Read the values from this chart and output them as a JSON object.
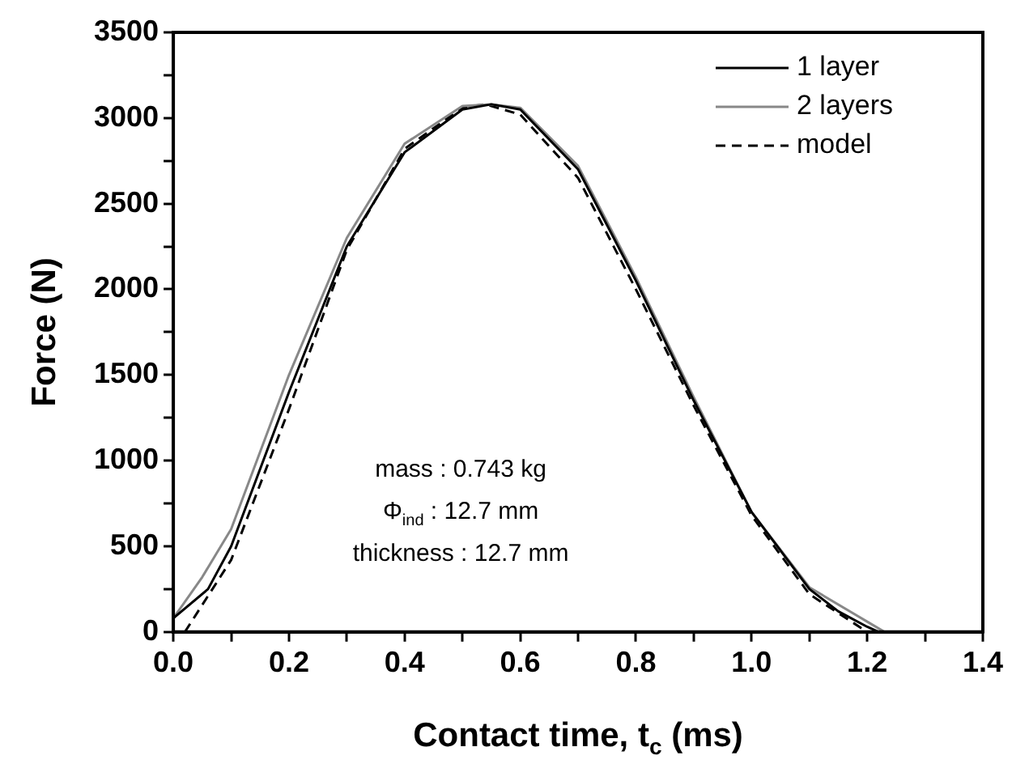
{
  "chart_data": {
    "type": "line",
    "xlabel": "Contact time, t$_{c}$ (ms)",
    "ylabel": "Force (N)",
    "xlim": [
      0,
      1.4
    ],
    "ylim": [
      0,
      3500
    ],
    "xticks": [
      {
        "value": 0,
        "label": "0.0"
      },
      {
        "value": 0.1,
        "label": null
      },
      0.2,
      {
        "value": 0.3,
        "label": null
      },
      0.4,
      {
        "value": 0.5,
        "label": null
      },
      0.6,
      {
        "value": 0.7,
        "label": null
      },
      0.8,
      {
        "value": 0.9,
        "label": null
      },
      {
        "value": 1.0,
        "label": "1.0"
      },
      {
        "value": 1.1,
        "label": null
      },
      1.2,
      {
        "value": 1.3,
        "label": null
      },
      1.4
    ],
    "yticks": [
      0,
      {
        "value": 250,
        "label": null
      },
      500,
      {
        "value": 750,
        "label": null
      },
      1000,
      {
        "value": 1250,
        "label": null
      },
      1500,
      {
        "value": 1750,
        "label": null
      },
      2000,
      {
        "value": 2250,
        "label": null
      },
      2500,
      {
        "value": 2750,
        "label": null
      },
      3000,
      {
        "value": 3250,
        "label": null
      },
      3500
    ],
    "legend": "top right",
    "grid": false,
    "marker": "none",
    "annotations": [
      "mass : 0.743 kg",
      "Φ$_{ind}$ : 12.7 mm",
      "thickness : 12.7 mm"
    ],
    "series": [
      {
        "name": "1 layer",
        "color": "#000000",
        "line_style": "solid",
        "x": [
          0,
          0.06,
          0.1,
          0.2,
          0.3,
          0.4,
          0.5,
          0.55,
          0.6,
          0.7,
          0.8,
          0.9,
          1.0,
          1.1,
          1.15,
          1.2,
          1.22
        ],
        "values": [
          80,
          250,
          500,
          1400,
          2250,
          2800,
          3050,
          3080,
          3050,
          2700,
          2050,
          1350,
          700,
          250,
          120,
          30,
          0
        ]
      },
      {
        "name": "2 layers",
        "color": "#888888",
        "line_style": "solid",
        "x": [
          0,
          0.05,
          0.1,
          0.2,
          0.3,
          0.4,
          0.5,
          0.55,
          0.6,
          0.7,
          0.8,
          0.9,
          1.0,
          1.1,
          1.2,
          1.23
        ],
        "values": [
          80,
          320,
          600,
          1500,
          2300,
          2850,
          3070,
          3080,
          3060,
          2720,
          2070,
          1370,
          700,
          260,
          60,
          0
        ]
      },
      {
        "name": "model",
        "color": "#000000",
        "line_style": "dashed",
        "x": [
          0.02,
          0.1,
          0.2,
          0.3,
          0.4,
          0.5,
          0.54,
          0.6,
          0.7,
          0.8,
          0.9,
          1.0,
          1.1,
          1.2
        ],
        "values": [
          0,
          420,
          1300,
          2230,
          2820,
          3060,
          3080,
          3020,
          2650,
          2000,
          1320,
          680,
          220,
          0
        ]
      }
    ]
  }
}
